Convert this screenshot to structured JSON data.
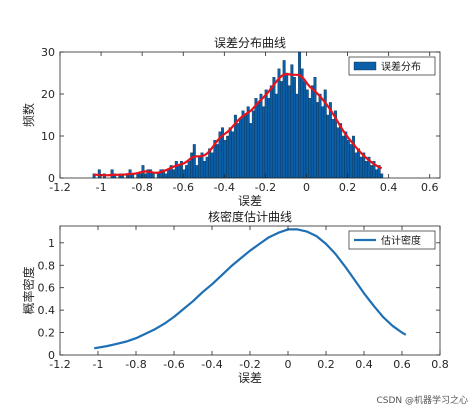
{
  "chart_data": [
    {
      "type": "bar",
      "title": "误差分布曲线",
      "xlabel": "误差",
      "ylabel": "频数",
      "xlim": [
        -1.2,
        0.65
      ],
      "ylim": [
        0,
        30
      ],
      "xticks": [
        "-1.2",
        "-1",
        "-0.8",
        "-0.6",
        "-0.4",
        "-0.2",
        "0",
        "0.2",
        "0.4",
        "0.6"
      ],
      "yticks": [
        "0",
        "10",
        "20",
        "30"
      ],
      "legend": {
        "position": "top-right",
        "entries": [
          "误差分布"
        ]
      },
      "colors": {
        "bar": "#0a5fa8",
        "curve": "#e8121a"
      },
      "series": [
        {
          "name": "误差分布",
          "kind": "histogram",
          "bin_start": -1.04,
          "bin_width": 0.0125,
          "counts": [
            1,
            0,
            2,
            0,
            1,
            0,
            0,
            2,
            1,
            0,
            1,
            1,
            0,
            1,
            2,
            1,
            0,
            1,
            1,
            3,
            1,
            2,
            2,
            1,
            0,
            1,
            2,
            2,
            1,
            2,
            3,
            2,
            4,
            3,
            4,
            2,
            3,
            4,
            6,
            8,
            3,
            5,
            6,
            4,
            5,
            7,
            6,
            9,
            8,
            11,
            12,
            9,
            10,
            12,
            11,
            15,
            13,
            14,
            16,
            15,
            17,
            13,
            16,
            19,
            18,
            20,
            17,
            21,
            19,
            22,
            24,
            20,
            26,
            23,
            28,
            25,
            22,
            27,
            24,
            20,
            30,
            26,
            23,
            21,
            19,
            22,
            24,
            18,
            20,
            17,
            21,
            15,
            18,
            14,
            16,
            12,
            13,
            10,
            11,
            9,
            8,
            10,
            6,
            7,
            5,
            6,
            4,
            5,
            3,
            4,
            2,
            3,
            1
          ]
        }
      ]
    },
    {
      "type": "line",
      "title": "核密度估计曲线",
      "xlabel": "误差",
      "ylabel": "概率密度",
      "xlim": [
        -1.2,
        0.8
      ],
      "ylim": [
        0,
        1.15
      ],
      "xticks": [
        "-1.2",
        "-1",
        "-0.8",
        "-0.6",
        "-0.4",
        "-0.2",
        "0",
        "0.2",
        "0.4",
        "0.6",
        "0.8"
      ],
      "yticks": [
        "0",
        "0.2",
        "0.4",
        "0.6",
        "0.8",
        "1"
      ],
      "legend": {
        "position": "top-right",
        "entries": [
          "估计密度"
        ]
      },
      "colors": {
        "curve": "#1f6fb4"
      },
      "series": [
        {
          "name": "估计密度",
          "x": [
            -1.02,
            -0.95,
            -0.9,
            -0.85,
            -0.8,
            -0.75,
            -0.7,
            -0.65,
            -0.6,
            -0.55,
            -0.5,
            -0.45,
            -0.4,
            -0.35,
            -0.3,
            -0.25,
            -0.2,
            -0.15,
            -0.1,
            -0.05,
            0,
            0.05,
            0.1,
            0.15,
            0.2,
            0.25,
            0.3,
            0.35,
            0.4,
            0.45,
            0.5,
            0.55,
            0.6,
            0.62
          ],
          "y": [
            0.06,
            0.08,
            0.1,
            0.12,
            0.15,
            0.19,
            0.23,
            0.28,
            0.34,
            0.41,
            0.48,
            0.56,
            0.63,
            0.71,
            0.79,
            0.86,
            0.93,
            0.99,
            1.05,
            1.09,
            1.12,
            1.12,
            1.1,
            1.06,
            0.99,
            0.9,
            0.79,
            0.67,
            0.55,
            0.44,
            0.34,
            0.26,
            0.2,
            0.18
          ]
        }
      ]
    }
  ],
  "watermark": "CSDN @机器学习之心"
}
